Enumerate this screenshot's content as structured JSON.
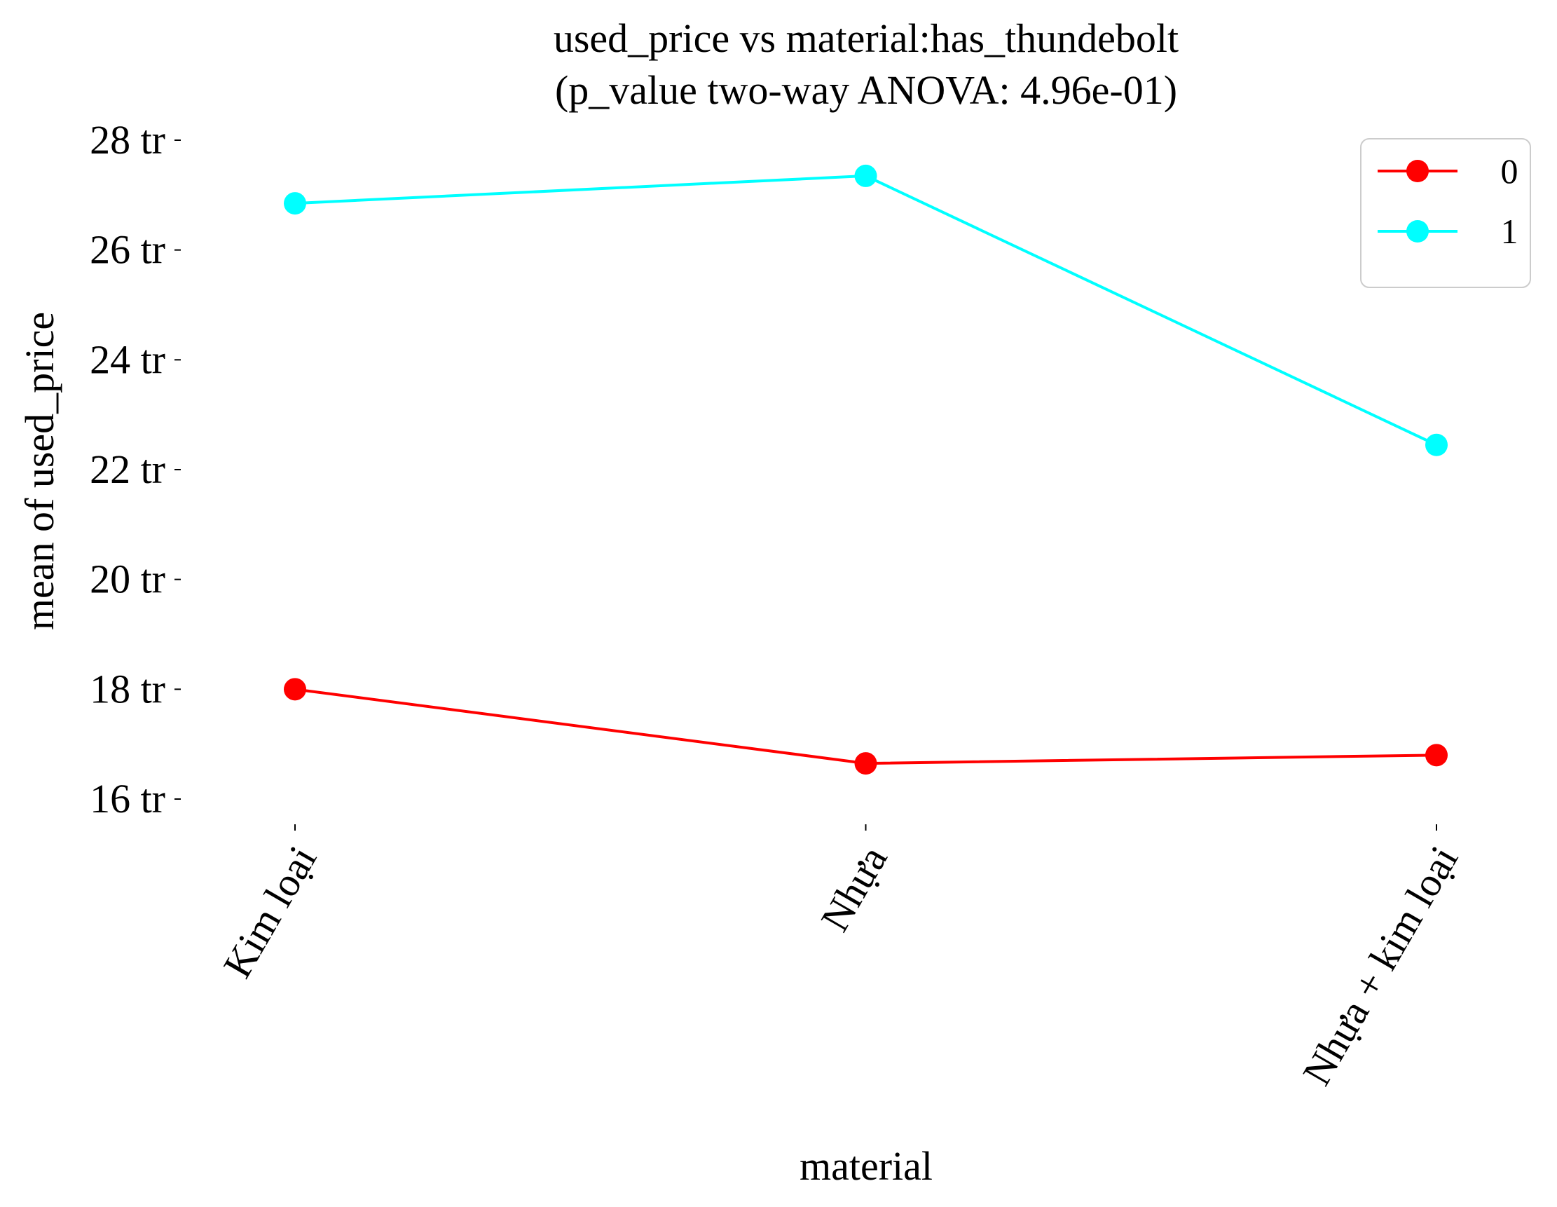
{
  "chart_data": {
    "type": "line",
    "title": "used_price vs material:has_thundebolt",
    "subtitle": "(p_value two-way ANOVA: 4.96e-01)",
    "xlabel": "material",
    "ylabel": "mean of used_price",
    "categories": [
      "Kim loại",
      "Nhựa",
      "Nhựa + kim loại"
    ],
    "y_ticks": [
      16,
      18,
      20,
      22,
      24,
      26,
      28
    ],
    "y_tick_labels": [
      "16 tr",
      "18 tr",
      "20 tr",
      "22 tr",
      "24 tr",
      "26 tr",
      "28 tr"
    ],
    "ylim": [
      15.6,
      28.8
    ],
    "grid": false,
    "legend_position": "top-right",
    "series": [
      {
        "name": "0",
        "color": "#ff0000",
        "values": [
          18.0,
          16.65,
          16.8
        ]
      },
      {
        "name": "1",
        "color": "#00ffff",
        "values": [
          26.85,
          27.35,
          22.45
        ]
      }
    ]
  }
}
